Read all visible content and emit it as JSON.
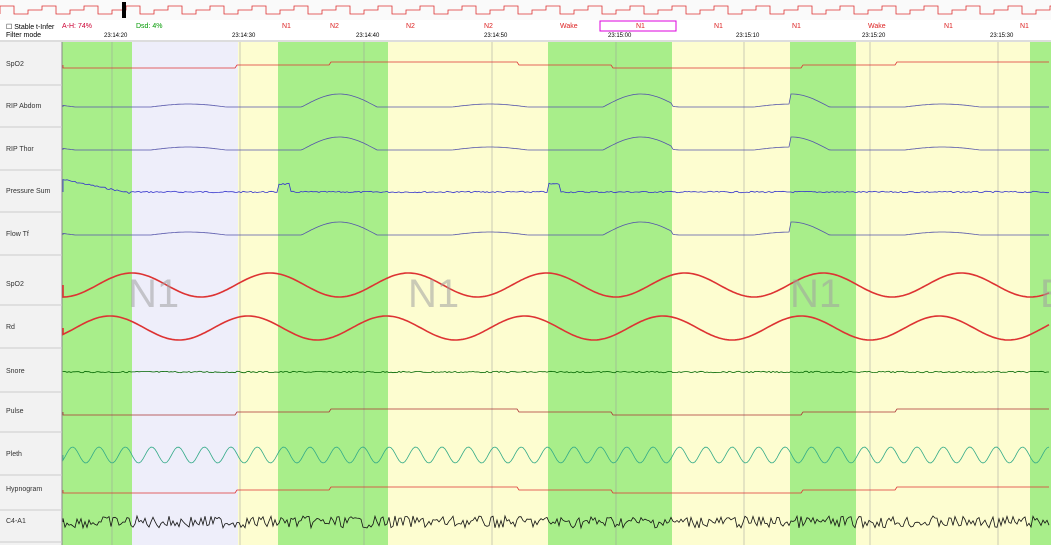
{
  "toolbar": {
    "checkbox_label": "Stable t-Infer",
    "ah_index": "A-H: 74%",
    "desat_index": "Dsd: 4%",
    "filter_label": "Filter mode"
  },
  "epoch_stages": [
    "N1",
    "N2",
    "N2",
    "N2",
    "Wake",
    "N1",
    "N1",
    "N1",
    "Wake",
    "N1",
    "N1"
  ],
  "time_labels": [
    "23:14:20",
    "23:14:30",
    "23:14:40",
    "23:14:50",
    "23:15:00",
    "23:15:10",
    "23:15:20",
    "23:15:30"
  ],
  "channels": [
    "SpO2",
    "RIP Abdom",
    "RIP Thor",
    "Pressure Sum",
    "Flow Tf",
    "SpO2",
    "Rd",
    "Snore",
    "Pulse",
    "Pleth",
    "Hypnogram",
    "C4-A1"
  ],
  "stage_overlays": [
    "N1",
    "N1",
    "N1",
    "E"
  ]
}
